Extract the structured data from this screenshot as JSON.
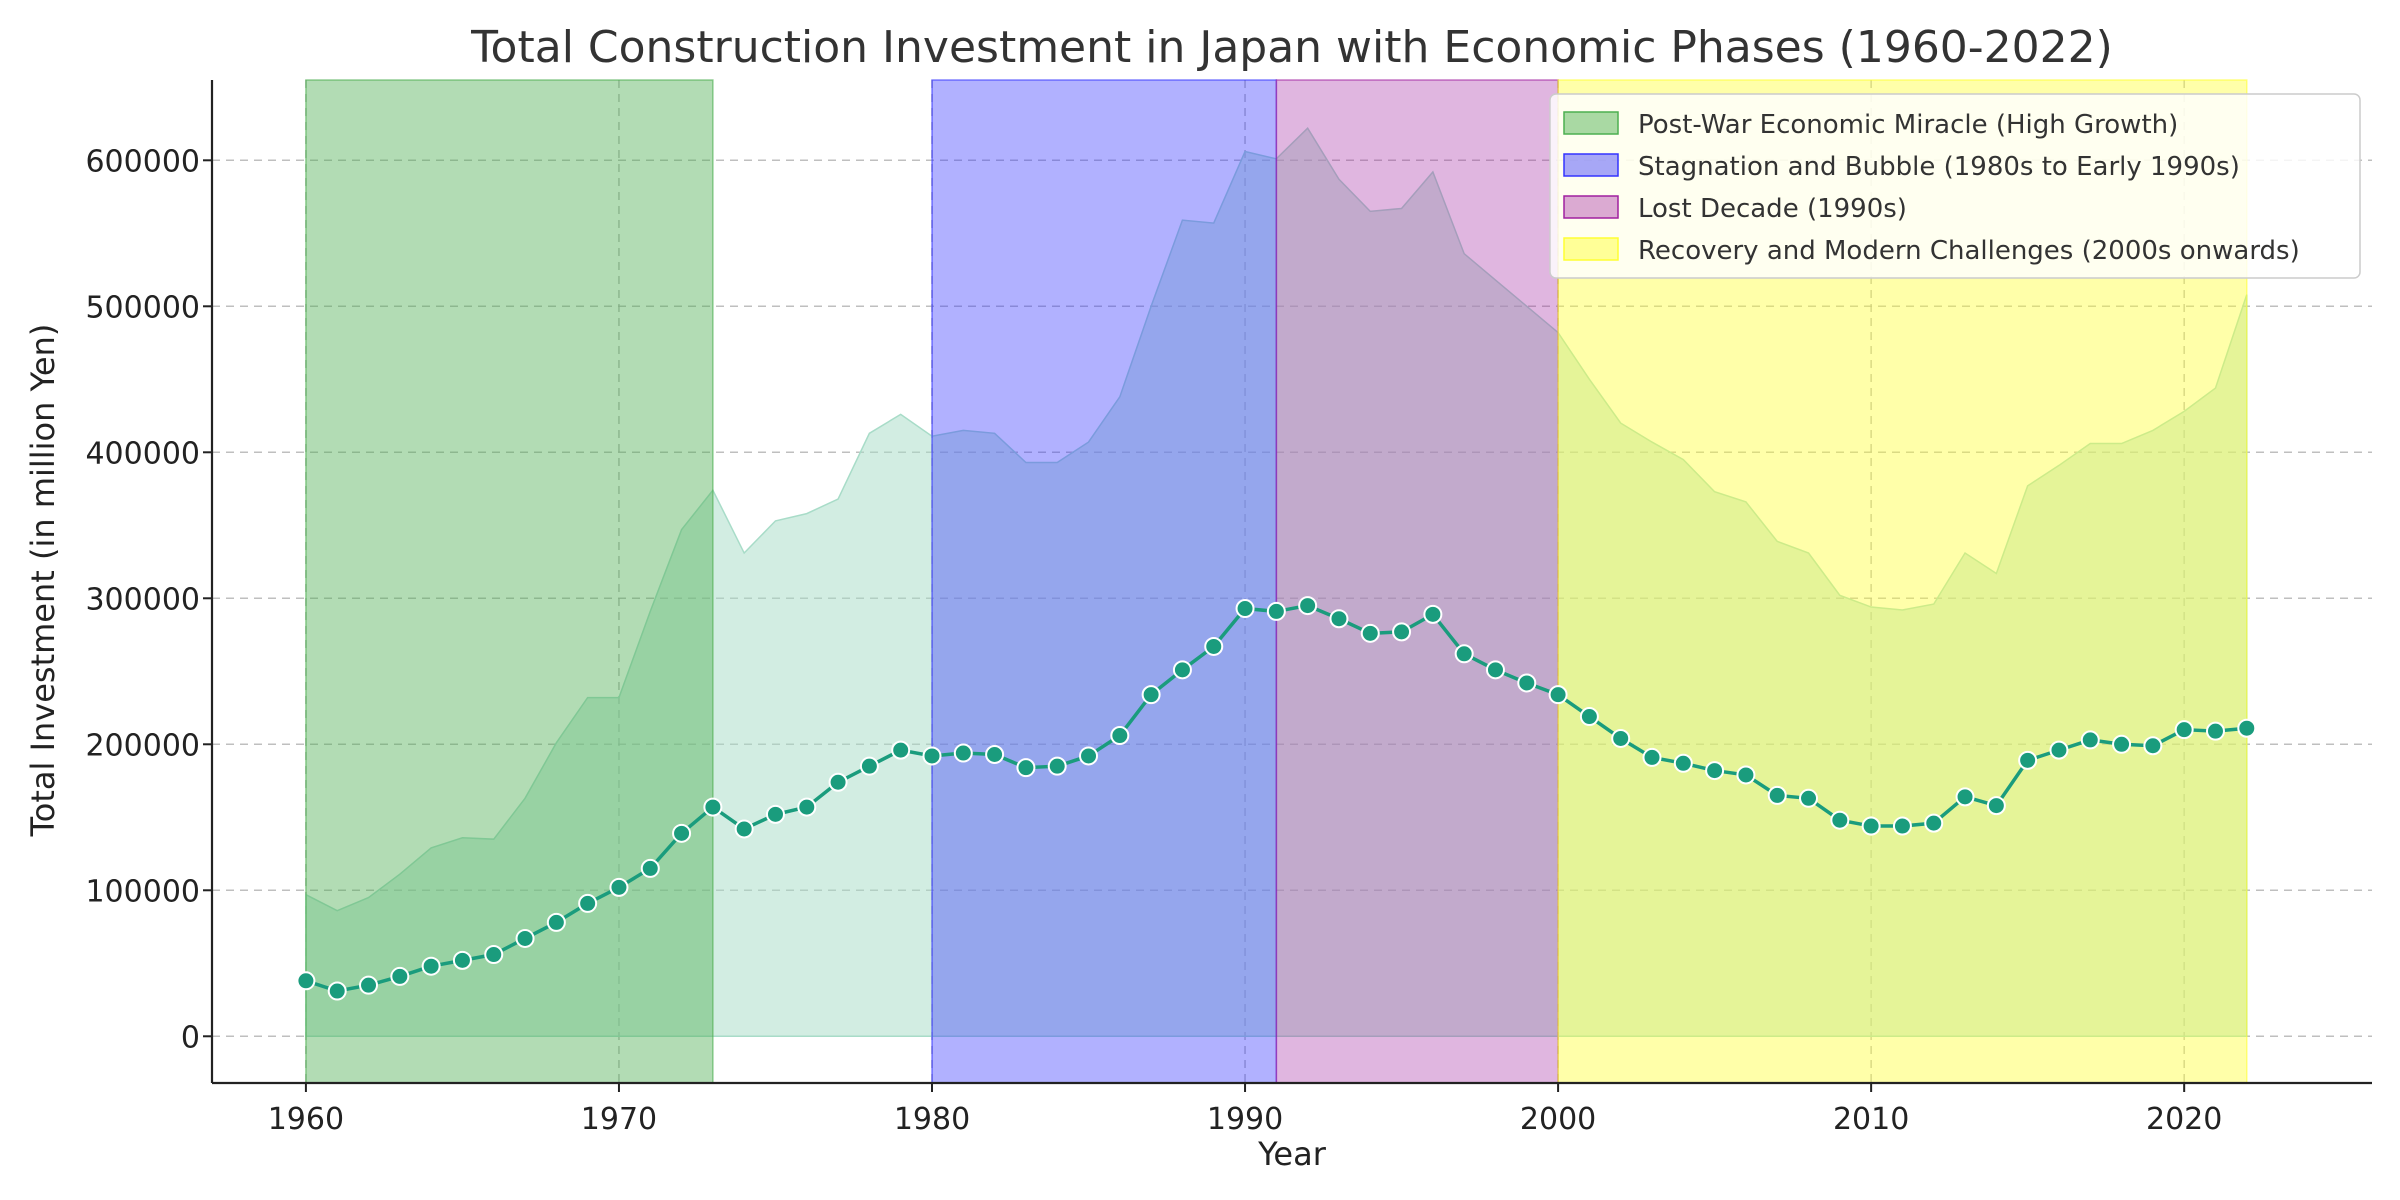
{
  "chart_data": {
    "type": "line",
    "title": "Total Construction Investment in Japan with Economic Phases (1960-2022)",
    "xlabel": "Year",
    "ylabel": "Total Investment (in million Yen)",
    "xlim": [
      1957,
      2026
    ],
    "ylim": [
      -32000,
      655000
    ],
    "x_ticks": [
      1960,
      1970,
      1980,
      1990,
      2000,
      2010,
      2020
    ],
    "y_ticks": [
      0,
      100000,
      200000,
      300000,
      400000,
      500000,
      600000
    ],
    "grid": true,
    "legend_position": "top-right",
    "line_color": "#1a9c7d",
    "area_color": "#a8dcc8",
    "x": [
      1960,
      1961,
      1962,
      1963,
      1964,
      1965,
      1966,
      1967,
      1968,
      1969,
      1970,
      1971,
      1972,
      1973,
      1974,
      1975,
      1976,
      1977,
      1978,
      1979,
      1980,
      1981,
      1982,
      1983,
      1984,
      1985,
      1986,
      1987,
      1988,
      1989,
      1990,
      1991,
      1992,
      1993,
      1994,
      1995,
      1996,
      1997,
      1998,
      1999,
      2000,
      2001,
      2002,
      2003,
      2004,
      2005,
      2006,
      2007,
      2008,
      2009,
      2010,
      2011,
      2012,
      2013,
      2014,
      2015,
      2016,
      2017,
      2018,
      2019,
      2020,
      2021,
      2022
    ],
    "series": [
      {
        "values": [
          38000,
          31000,
          35000,
          41000,
          48000,
          52000,
          56000,
          67000,
          78000,
          91000,
          102000,
          115000,
          139000,
          157000,
          142000,
          152000,
          157000,
          174000,
          185000,
          196000,
          192000,
          194000,
          193000,
          184000,
          185000,
          192000,
          206000,
          234000,
          251000,
          267000,
          293000,
          291000,
          295000,
          286000,
          276000,
          277000,
          289000,
          262000,
          251000,
          242000,
          234000,
          219000,
          204000,
          191000,
          187000,
          182000,
          179000,
          165000,
          163000,
          148000,
          144000,
          144000,
          146000,
          164000,
          158000,
          189000,
          196000,
          203000,
          200000,
          199000,
          210000,
          209000,
          211000
        ]
      }
    ],
    "area_upper": [
      97000,
      86000,
      95000,
      111000,
      129000,
      136000,
      135000,
      163000,
      201000,
      232000,
      232000,
      291000,
      347000,
      374000,
      331000,
      353000,
      358000,
      368000,
      413000,
      426000,
      411000,
      415000,
      413000,
      393000,
      393000,
      407000,
      438000,
      500000,
      559000,
      557000,
      606000,
      601000,
      622000,
      587000,
      565000,
      567000,
      592000,
      536000,
      518000,
      500000,
      482000,
      450000,
      420000,
      407000,
      395000,
      373000,
      366000,
      339000,
      331000,
      302000,
      294000,
      292000,
      296000,
      331000,
      317000,
      377000,
      391000,
      406000,
      406000,
      415000,
      428000,
      444000,
      508000
    ],
    "phases": [
      {
        "name": "Post-War Economic Miracle (High Growth)",
        "start": 1960,
        "end": 1973,
        "color": "#4caf50",
        "opacity": 0.43
      },
      {
        "name": "Stagnation and Bubble (1980s to Early 1990s)",
        "start": 1980,
        "end": 1991,
        "color": "#3333ff",
        "opacity": 0.38
      },
      {
        "name": "Lost Decade (1990s)",
        "start": 1991,
        "end": 2000,
        "color": "#a020a0",
        "opacity": 0.33
      },
      {
        "name": "Recovery and Modern Challenges (2000s onwards)",
        "start": 2000,
        "end": 2022,
        "color": "#ffff33",
        "opacity": 0.42
      }
    ]
  }
}
